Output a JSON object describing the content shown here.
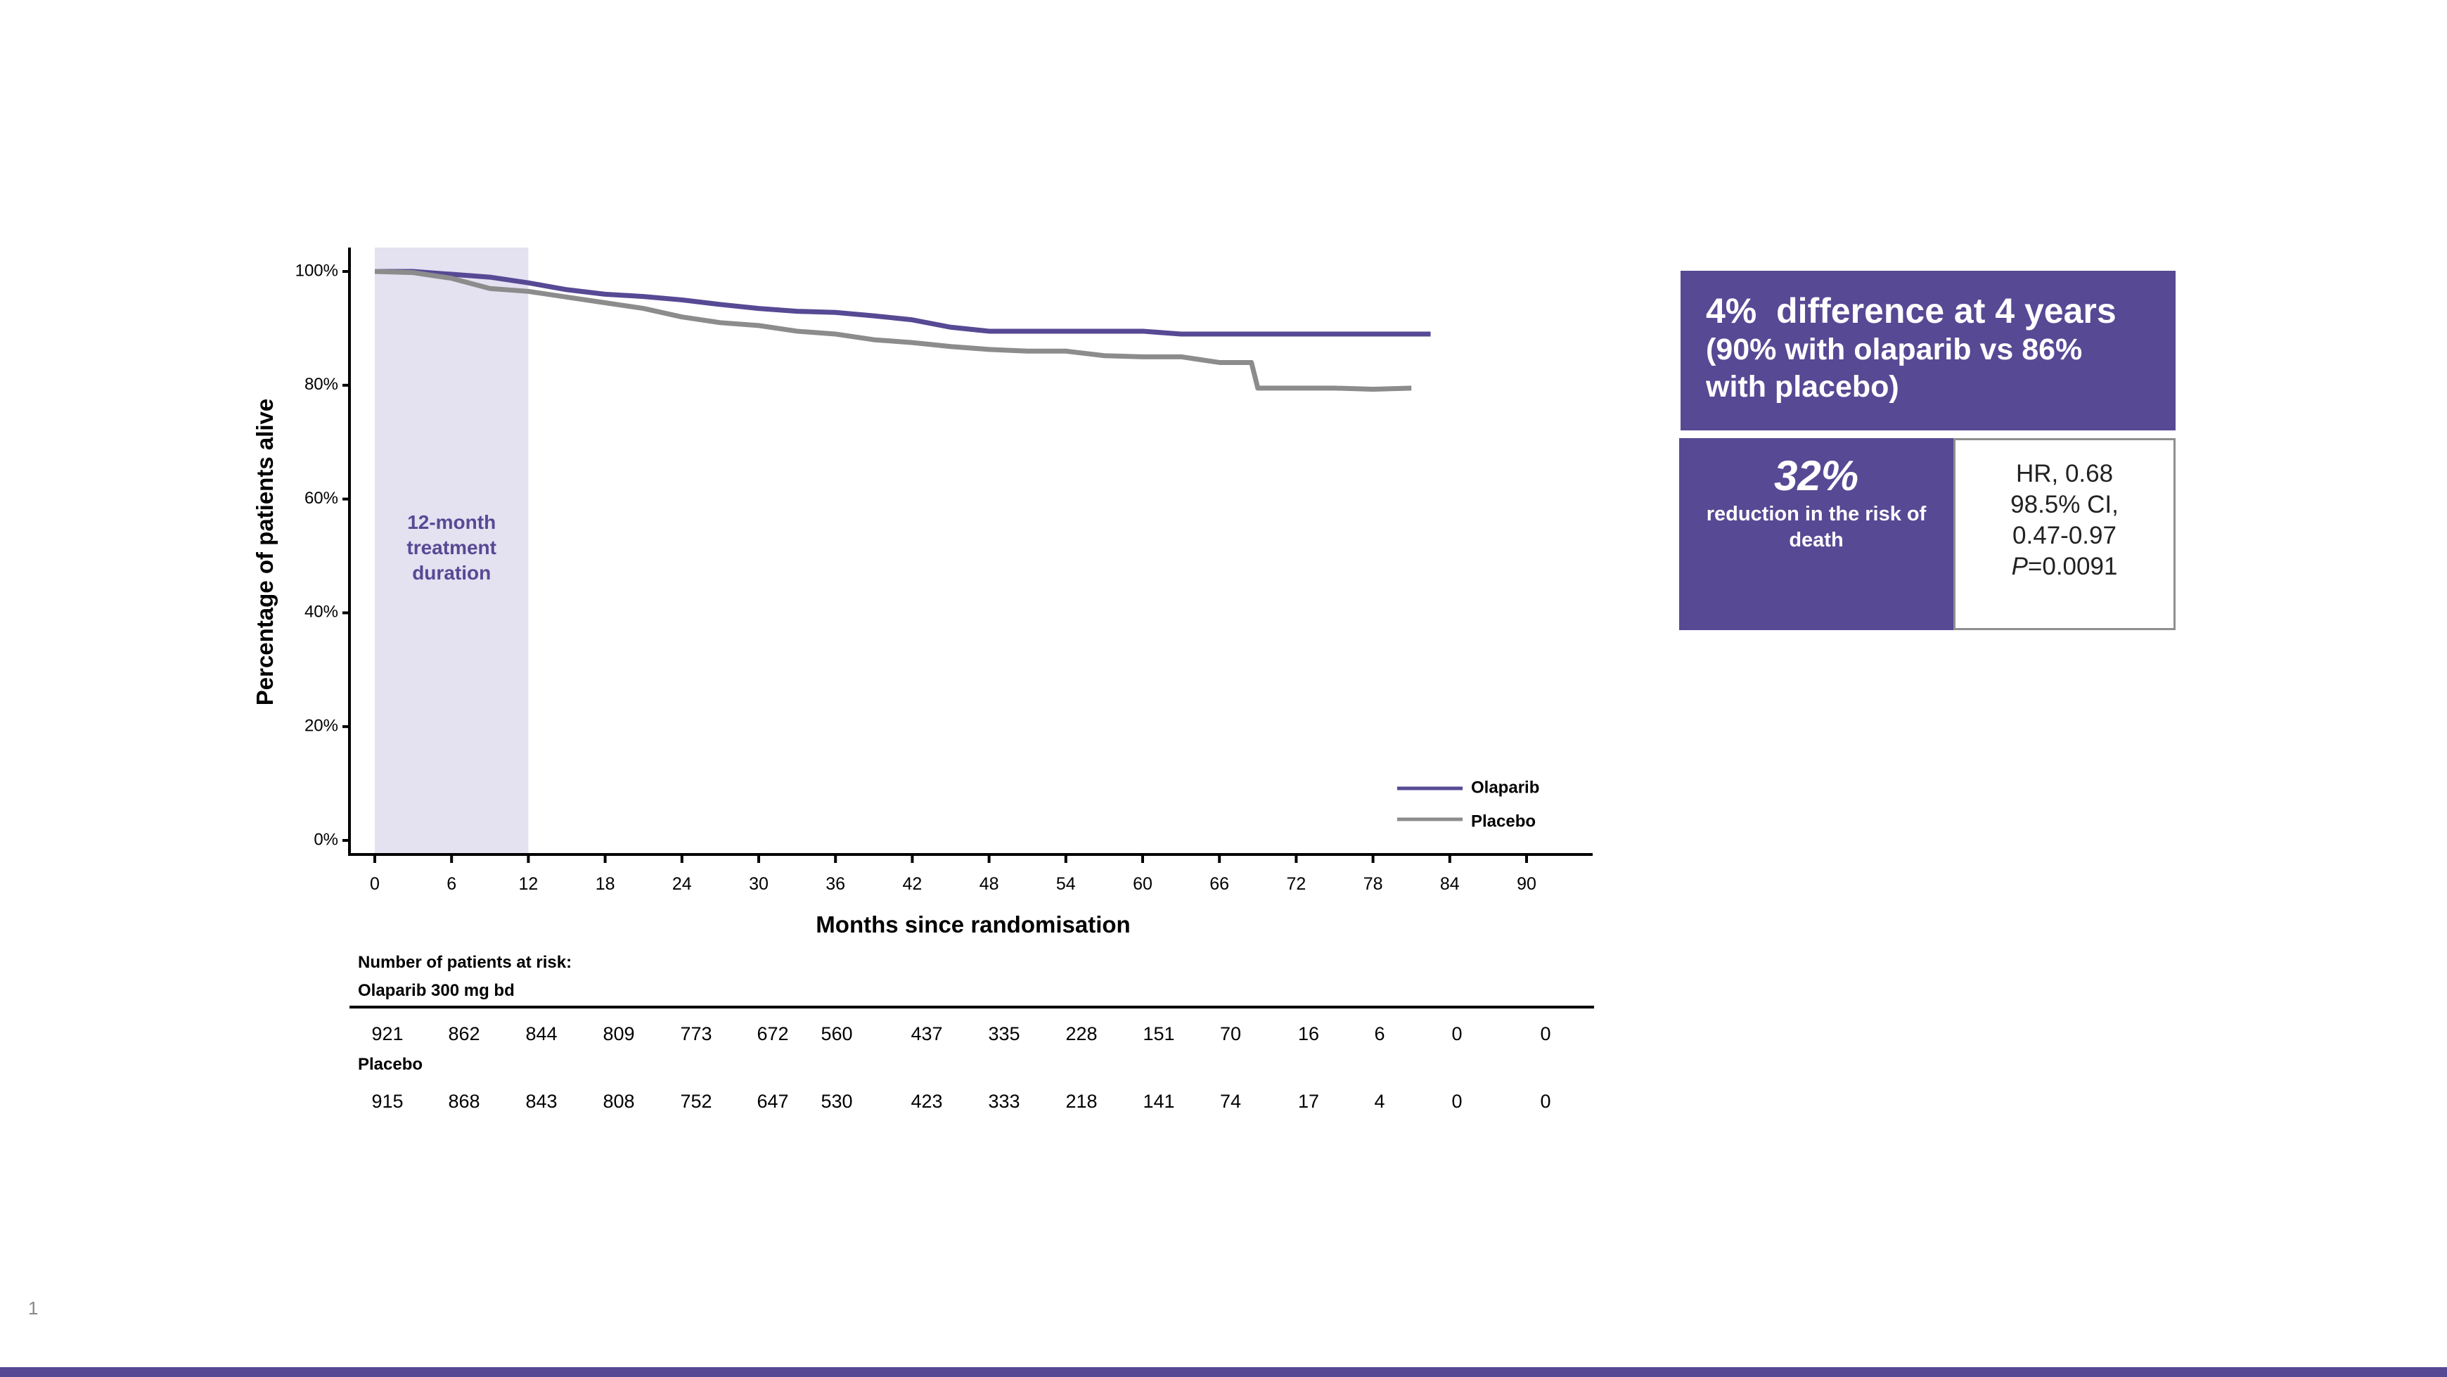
{
  "chart_data": {
    "type": "line",
    "xlabel": "Months since randomisation",
    "ylabel": "Percentage of patients alive",
    "xlim": [
      0,
      90
    ],
    "ylim": [
      0,
      100
    ],
    "x_ticks": [
      0,
      6,
      12,
      18,
      24,
      30,
      36,
      42,
      48,
      54,
      60,
      66,
      72,
      78,
      84,
      90
    ],
    "y_ticks": [
      "0%",
      "20%",
      "40%",
      "60%",
      "80%",
      "100%"
    ],
    "y_tick_values": [
      0,
      20,
      40,
      60,
      80,
      100
    ],
    "shaded_region": {
      "x_start": 0,
      "x_end": 12,
      "label": "12-month treatment duration"
    },
    "legend_position": "bottom-right",
    "series": [
      {
        "name": "Olaparib",
        "color": "#574994",
        "x": [
          0,
          3,
          6,
          9,
          12,
          15,
          18,
          21,
          24,
          27,
          30,
          33,
          36,
          39,
          42,
          45,
          48,
          51,
          54,
          57,
          60,
          63,
          66,
          69,
          72,
          75,
          78,
          81,
          82.5
        ],
        "y": [
          100,
          100,
          99.5,
          99,
          98,
          96.8,
          96,
          95.6,
          95,
          94.2,
          93.5,
          93,
          92.8,
          92.2,
          91.5,
          90.2,
          89.5,
          89.5,
          89.5,
          89.5,
          89.5,
          89,
          89,
          89,
          89,
          89,
          89,
          89,
          89
        ]
      },
      {
        "name": "Placebo",
        "color": "#8c8c8c",
        "x": [
          0,
          3,
          6,
          9,
          12,
          15,
          18,
          21,
          24,
          27,
          30,
          33,
          36,
          39,
          42,
          45,
          48,
          51,
          54,
          57,
          60,
          63,
          64.5,
          66,
          68.5,
          69,
          72,
          75,
          78,
          81
        ],
        "y": [
          100,
          99.8,
          98.8,
          97,
          96.5,
          95.5,
          94.5,
          93.5,
          92,
          91,
          90.5,
          89.5,
          89,
          88,
          87.5,
          86.8,
          86.3,
          86,
          86,
          85.2,
          85,
          85,
          84.5,
          84,
          84,
          79.5,
          79.5,
          79.5,
          79.3,
          79.5
        ]
      }
    ]
  },
  "shade_label_lines": [
    "12-month",
    "treatment",
    "duration"
  ],
  "legend": {
    "olaparib": "Olaparib",
    "placebo": "Placebo"
  },
  "risk_table": {
    "title": "Number of patients at risk:",
    "olaparib_label": "Olaparib 300 mg bd",
    "olaparib": [
      "921",
      "862",
      "844",
      "809",
      "773",
      "672",
      "560",
      "437",
      "335",
      "228",
      "151",
      "70",
      "16",
      "6",
      "0",
      "0"
    ],
    "placebo_label": "Placebo",
    "placebo": [
      "915",
      "868",
      "843",
      "808",
      "752",
      "647",
      "530",
      "423",
      "333",
      "218",
      "141",
      "74",
      "17",
      "4",
      "0",
      "0"
    ]
  },
  "summary": {
    "headline": "4%  difference at 4 years",
    "subline": "(90% with olaparib vs 86% with placebo)",
    "reduction_pct": "32%",
    "reduction_text": "reduction in the risk of death",
    "hr": "HR, 0.68",
    "ci_label": "98.5% CI,",
    "ci_range": "0.47-0.97",
    "p_label": "P",
    "p_value": "=0.0091"
  },
  "page_number": "1",
  "colors": {
    "accent": "#574994",
    "shade": "#e4e1f1",
    "placebo": "#8c8c8c"
  }
}
